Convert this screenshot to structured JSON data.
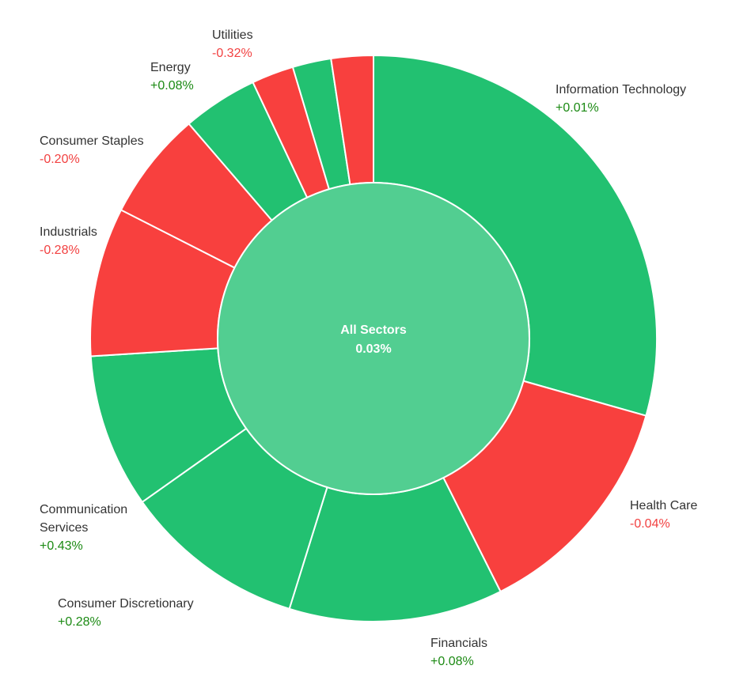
{
  "chart_data": {
    "type": "donut",
    "center": {
      "label": "All Sectors",
      "value": "0.03%",
      "color": "#52CE91"
    },
    "colors": {
      "positive": "#22C171",
      "negative": "#F8403E",
      "positive_text": "#1C8A14",
      "negative_text": "#F24141",
      "separator": "#ffffff"
    },
    "sectors": [
      {
        "name": "Information Technology",
        "label_lines": [
          "Information Technology"
        ],
        "change": "+0.01%",
        "sign": "positive",
        "weight": 29.4
      },
      {
        "name": "Health Care",
        "label_lines": [
          "Health Care"
        ],
        "change": "-0.04%",
        "sign": "negative",
        "weight": 13.2
      },
      {
        "name": "Financials",
        "label_lines": [
          "Financials"
        ],
        "change": "+0.08%",
        "sign": "positive",
        "weight": 12.2
      },
      {
        "name": "Consumer Discretionary",
        "label_lines": [
          "Consumer Discretionary"
        ],
        "change": "+0.28%",
        "sign": "positive",
        "weight": 10.4
      },
      {
        "name": "Communication Services",
        "label_lines": [
          "Communication",
          "Services"
        ],
        "change": "+0.43%",
        "sign": "positive",
        "weight": 8.8
      },
      {
        "name": "Industrials",
        "label_lines": [
          "Industrials"
        ],
        "change": "-0.28%",
        "sign": "negative",
        "weight": 8.5
      },
      {
        "name": "Consumer Staples",
        "label_lines": [
          "Consumer Staples"
        ],
        "change": "-0.20%",
        "sign": "negative",
        "weight": 6.2
      },
      {
        "name": "Energy",
        "label_lines": [
          "Energy"
        ],
        "change": "+0.08%",
        "sign": "positive",
        "weight": 4.3
      },
      {
        "name": "Utilities",
        "label_lines": [
          "Utilities"
        ],
        "change": "-0.32%",
        "sign": "negative",
        "weight": 2.4
      },
      {
        "name": "",
        "label_lines": [],
        "change": "",
        "sign": "positive",
        "weight": 2.2
      },
      {
        "name": "",
        "label_lines": [],
        "change": "",
        "sign": "negative",
        "weight": 2.4
      }
    ]
  }
}
